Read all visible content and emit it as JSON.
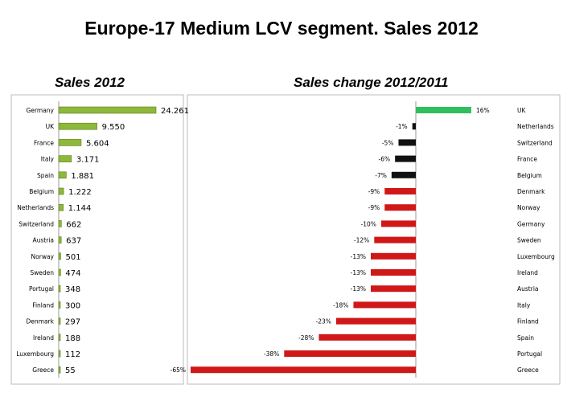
{
  "title": "Europe-17 Medium LCV segment. Sales 2012",
  "chart_data": [
    {
      "type": "bar",
      "orientation": "horizontal",
      "title": "Sales 2012",
      "categories": [
        "Germany",
        "UK",
        "France",
        "Italy",
        "Spain",
        "Belgium",
        "Netherlands",
        "Switzerland",
        "Austria",
        "Norway",
        "Sweden",
        "Portugal",
        "Finland",
        "Denmark",
        "Ireland",
        "Luxembourg",
        "Greece"
      ],
      "values": [
        24261,
        9550,
        5604,
        3171,
        1881,
        1222,
        1144,
        662,
        637,
        501,
        474,
        348,
        300,
        297,
        188,
        112,
        55
      ],
      "labels": [
        "24.261",
        "9.550",
        "5.604",
        "3.171",
        "1.881",
        "1.222",
        "1.144",
        "662",
        "637",
        "501",
        "474",
        "348",
        "300",
        "297",
        "188",
        "112",
        "55"
      ],
      "color": "#8db83a"
    },
    {
      "type": "bar",
      "orientation": "horizontal",
      "title": "Sales change 2012/2011",
      "categories": [
        "UK",
        "Netherlands",
        "Switzerland",
        "France",
        "Belgium",
        "Denmark",
        "Norway",
        "Germany",
        "Sweden",
        "Luxembourg",
        "Ireland",
        "Austria",
        "Italy",
        "Finland",
        "Spain",
        "Portugal",
        "Greece"
      ],
      "values": [
        16,
        -1,
        -5,
        -6,
        -7,
        -9,
        -9,
        -10,
        -12,
        -13,
        -13,
        -13,
        -18,
        -23,
        -28,
        -38,
        -65
      ],
      "labels": [
        "16%",
        "-1%",
        "-5%",
        "-6%",
        "-7%",
        "-9%",
        "-9%",
        "-10%",
        "-12%",
        "-13%",
        "-13%",
        "-13%",
        "-18%",
        "-23%",
        "-28%",
        "-38%",
        "-65%"
      ],
      "colors": {
        "positive": "#2fbf5f",
        "small_decline": "#111111",
        "large_decline": "#d01818"
      }
    }
  ]
}
